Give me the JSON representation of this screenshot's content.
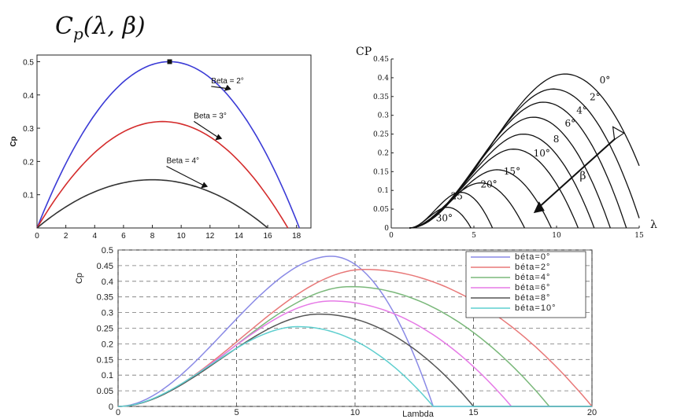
{
  "title": {
    "base": "C",
    "sub": "p",
    "args": "(λ, β)"
  },
  "chart_data": [
    {
      "type": "line",
      "ylabel": "Cp",
      "xlabel": "",
      "xlim": [
        0,
        19
      ],
      "ylim": [
        0,
        0.52
      ],
      "xticks": [
        0,
        2,
        4,
        6,
        8,
        10,
        12,
        14,
        16,
        18
      ],
      "yticks": [
        0.1,
        0.2,
        0.3,
        0.4,
        0.5
      ],
      "grid": false,
      "series": [
        {
          "name": "Beta = 2°",
          "color": "#3b3bd6",
          "peak_x": 9.2,
          "peak_y": 0.5,
          "end_x": 18.2,
          "label_x": 12.3,
          "label_y": 0.435
        },
        {
          "name": "Beta = 3°",
          "color": "#d42c2c",
          "peak_x": 8.7,
          "peak_y": 0.32,
          "end_x": 17.4,
          "label_x": 11.1,
          "label_y": 0.33
        },
        {
          "name": "Beta = 4°",
          "color": "#333333",
          "peak_x": 8.0,
          "peak_y": 0.145,
          "end_x": 16.0,
          "label_x": 9.2,
          "label_y": 0.195
        }
      ],
      "marker": {
        "x": 9.2,
        "y": 0.5
      }
    },
    {
      "type": "line",
      "ylabel": "CP",
      "xlabel": "λ",
      "xlim": [
        0,
        15
      ],
      "ylim": [
        0,
        0.45
      ],
      "xticks": [
        0,
        5,
        10,
        15
      ],
      "yticks": [
        0,
        0.05,
        0.1,
        0.15,
        0.2,
        0.25,
        0.3,
        0.35,
        0.4,
        0.45
      ],
      "grid": false,
      "annotation": "β",
      "series": [
        {
          "name": "0°",
          "peak_x": 10.5,
          "peak_y": 0.41,
          "label_x": 12.6,
          "label_y": 0.385
        },
        {
          "name": "2°",
          "peak_x": 9.8,
          "peak_y": 0.37,
          "label_x": 12.0,
          "label_y": 0.34
        },
        {
          "name": "4°",
          "peak_x": 9.2,
          "peak_y": 0.335,
          "label_x": 11.2,
          "label_y": 0.305
        },
        {
          "name": "6°",
          "peak_x": 8.6,
          "peak_y": 0.295,
          "label_x": 10.5,
          "label_y": 0.27
        },
        {
          "name": "8",
          "peak_x": 8.0,
          "peak_y": 0.25,
          "label_x": 9.8,
          "label_y": 0.228
        },
        {
          "name": "10°",
          "peak_x": 7.4,
          "peak_y": 0.21,
          "label_x": 8.6,
          "label_y": 0.19
        },
        {
          "name": "15°",
          "peak_x": 6.4,
          "peak_y": 0.155,
          "label_x": 6.8,
          "label_y": 0.142
        },
        {
          "name": "20°",
          "peak_x": 5.4,
          "peak_y": 0.12,
          "label_x": 5.4,
          "label_y": 0.108
        },
        {
          "name": "25",
          "peak_x": 4.2,
          "peak_y": 0.095,
          "label_x": 3.6,
          "label_y": 0.076
        },
        {
          "name": "30°",
          "peak_x": 3.4,
          "peak_y": 0.055,
          "label_x": 2.7,
          "label_y": 0.018
        }
      ]
    },
    {
      "type": "line",
      "ylabel": "Cp",
      "xlabel": "Lambda",
      "xlim": [
        0,
        20
      ],
      "ylim": [
        0,
        0.5
      ],
      "xticks": [
        0,
        5,
        10,
        15,
        20
      ],
      "yticks": [
        0,
        0.05,
        0.1,
        0.15,
        0.2,
        0.25,
        0.3,
        0.35,
        0.4,
        0.45,
        0.5
      ],
      "grid": true,
      "legend": "top-right",
      "series": [
        {
          "name": "béta=0°",
          "color": "#8a8ae6",
          "peak_x": 9.0,
          "peak_y": 0.48,
          "end_x": 13.3
        },
        {
          "name": "béta=2°",
          "color": "#e87878",
          "peak_x": 10.4,
          "peak_y": 0.438,
          "end_x": 20.0
        },
        {
          "name": "béta=4°",
          "color": "#7ab87a",
          "peak_x": 9.8,
          "peak_y": 0.383,
          "end_x": 18.2
        },
        {
          "name": "béta=6°",
          "color": "#e67ae6",
          "peak_x": 9.0,
          "peak_y": 0.337,
          "end_x": 16.6
        },
        {
          "name": "béta=8°",
          "color": "#555555",
          "peak_x": 8.5,
          "peak_y": 0.295,
          "end_x": 15.0
        },
        {
          "name": "béta=10°",
          "color": "#5fcfcf",
          "peak_x": 7.6,
          "peak_y": 0.255,
          "end_x": 13.3
        }
      ]
    }
  ]
}
